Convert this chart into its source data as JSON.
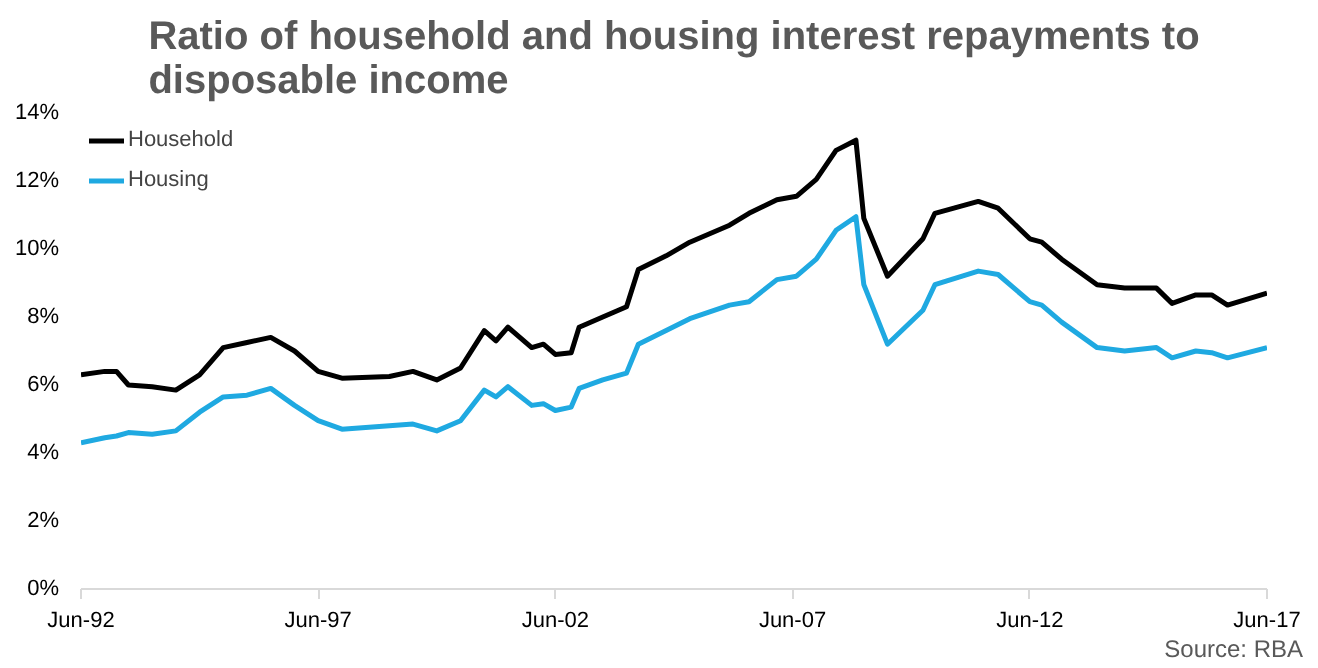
{
  "chart_data": {
    "type": "line",
    "title": "Ratio of household and housing interest repayments to\ndisposable income",
    "annotations": [
      "Source: RBA"
    ],
    "x": [
      "1992-06",
      "1992-12",
      "1993-03",
      "1993-06",
      "1993-12",
      "1994-06",
      "1994-12",
      "1995-06",
      "1995-12",
      "1996-06",
      "1996-12",
      "1997-06",
      "1997-12",
      "1998-12",
      "1999-06",
      "1999-12",
      "2000-06",
      "2000-12",
      "2001-03",
      "2001-06",
      "2001-12",
      "2002-03",
      "2002-06",
      "2002-10",
      "2002-12",
      "2003-06",
      "2003-12",
      "2004-03",
      "2004-10",
      "2005-04",
      "2005-09",
      "2006-02",
      "2006-07",
      "2007-02",
      "2007-07",
      "2007-12",
      "2008-05",
      "2008-10",
      "2008-12",
      "2009-06",
      "2010-03",
      "2010-06",
      "2011-05",
      "2011-10",
      "2012-06",
      "2012-09",
      "2013-02",
      "2013-11",
      "2014-06",
      "2015-02",
      "2015-06",
      "2015-12",
      "2016-04",
      "2016-08",
      "2017-06"
    ],
    "series": [
      {
        "name": "Household",
        "color": "#000000",
        "values": [
          6.3,
          6.4,
          6.4,
          6.0,
          5.95,
          5.85,
          6.3,
          7.1,
          7.25,
          7.4,
          7.0,
          6.4,
          6.2,
          6.25,
          6.4,
          6.15,
          6.5,
          7.6,
          7.3,
          7.7,
          7.1,
          7.2,
          6.9,
          6.95,
          7.7,
          8.0,
          8.3,
          9.4,
          9.8,
          10.2,
          10.45,
          10.7,
          11.05,
          11.45,
          11.55,
          12.05,
          12.9,
          13.2,
          10.9,
          9.2,
          10.3,
          11.05,
          11.4,
          11.2,
          10.3,
          10.2,
          9.7,
          8.95,
          8.85,
          8.85,
          8.4,
          8.65,
          8.65,
          8.35,
          8.7
        ]
      },
      {
        "name": "Housing",
        "color": "#1fa9e1",
        "values": [
          4.3,
          4.45,
          4.5,
          4.6,
          4.55,
          4.65,
          5.2,
          5.65,
          5.7,
          5.9,
          5.4,
          4.95,
          4.7,
          4.8,
          4.85,
          4.65,
          4.95,
          5.85,
          5.65,
          5.95,
          5.4,
          5.45,
          5.25,
          5.35,
          5.9,
          6.15,
          6.35,
          7.2,
          7.6,
          7.95,
          8.15,
          8.35,
          8.45,
          9.1,
          9.2,
          9.7,
          10.55,
          10.95,
          8.95,
          7.2,
          8.2,
          8.95,
          9.35,
          9.25,
          8.45,
          8.35,
          7.85,
          7.1,
          7.0,
          7.1,
          6.8,
          7.0,
          6.95,
          6.8,
          7.1
        ]
      }
    ],
    "xlim": [
      "1992-06",
      "2017-06"
    ],
    "xticks": [
      {
        "value": "1992-06",
        "label": "Jun-92"
      },
      {
        "value": "1997-06",
        "label": "Jun-97"
      },
      {
        "value": "2002-06",
        "label": "Jun-02"
      },
      {
        "value": "2007-06",
        "label": "Jun-07"
      },
      {
        "value": "2012-06",
        "label": "Jun-12"
      },
      {
        "value": "2017-06",
        "label": "Jun-17"
      }
    ],
    "ylim": [
      0,
      14
    ],
    "yticks": [
      {
        "value": 0,
        "label": "0%"
      },
      {
        "value": 2,
        "label": "2%"
      },
      {
        "value": 4,
        "label": "4%"
      },
      {
        "value": 6,
        "label": "6%"
      },
      {
        "value": 8,
        "label": "8%"
      },
      {
        "value": 10,
        "label": "10%"
      },
      {
        "value": 12,
        "label": "12%"
      },
      {
        "value": 14,
        "label": "14%"
      }
    ],
    "grid": false,
    "legend": "top left",
    "marker": "none",
    "line_style": "solid"
  }
}
